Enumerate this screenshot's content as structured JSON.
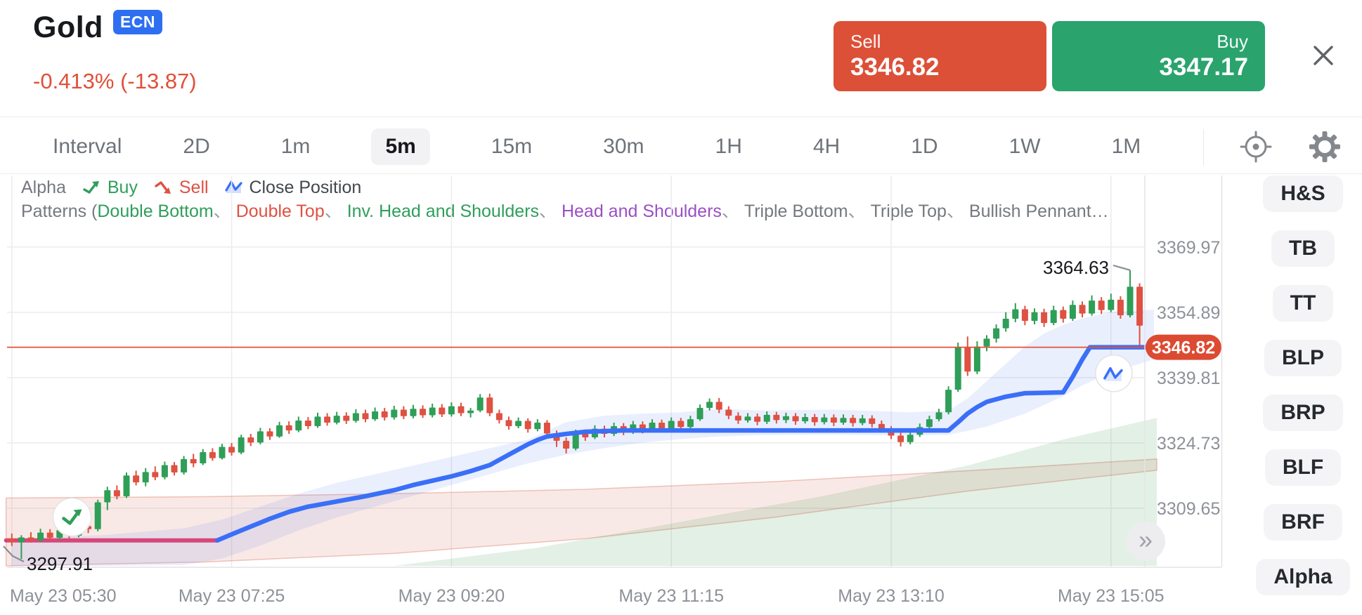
{
  "header": {
    "symbol": "Gold",
    "badge": "ECN",
    "change_text": "-0.413% (-13.87)",
    "sell_label": "Sell",
    "sell_price": "3346.82",
    "buy_label": "Buy",
    "buy_price": "3347.17"
  },
  "intervals": {
    "label": "Interval",
    "options": [
      "2D",
      "1m",
      "5m",
      "15m",
      "30m",
      "1H",
      "4H",
      "1D",
      "1W",
      "1M"
    ],
    "selected": "5m"
  },
  "legend": {
    "alpha_label": "Alpha",
    "buy_label": "Buy",
    "sell_label": "Sell",
    "close_label": "Close Position",
    "patterns_prefix": "Patterns (",
    "separator": "、",
    "patterns": [
      {
        "text": "Double Bottom",
        "color": "#2f9e5b"
      },
      {
        "text": "Double Top",
        "color": "#df5142"
      },
      {
        "text": "Inv. Head and Shoulders",
        "color": "#2f9e5b"
      },
      {
        "text": "Head and Shoulders",
        "color": "#9b4fc4"
      },
      {
        "text": "Triple Bottom",
        "color": "#75797f"
      },
      {
        "text": "Triple Top",
        "color": "#75797f"
      },
      {
        "text": "Bullish Pennant…",
        "color": "#75797f"
      }
    ]
  },
  "sidebar": {
    "buttons": [
      "H&S",
      "TB",
      "TT",
      "BLP",
      "BRP",
      "BLF",
      "BRF",
      "Alpha"
    ]
  },
  "icons": {
    "chevron_more": "»"
  },
  "colors": {
    "up": "#2f9e57",
    "down": "#df5142",
    "blue_line": "#3a6ff7",
    "band_fill": "rgba(61,111,247,0.11)",
    "pink_fill": "rgba(214,98,78,0.14)",
    "pink_edge": "rgba(214,98,78,0.35)",
    "green_fill": "rgba(60,150,80,0.14)",
    "support": "#d6477a",
    "price_line": "#e1523d",
    "pill_bg": "#dc4a32",
    "grid": "#ececee",
    "axis_text": "#8d9198",
    "annotation_text": "#16181c",
    "connector": "#8a8d92"
  },
  "chart_data": {
    "type": "candlestick",
    "symbol": "Gold",
    "interval": "5m",
    "title": "Gold 5m candlestick chart with Alpha close-position line and pattern zones",
    "x_labels": [
      "May 23 05:30",
      "May 23 07:25",
      "May 23 09:20",
      "May 23 11:15",
      "May 23 13:10",
      "May 23 15:05"
    ],
    "x_label_indices": [
      0,
      23,
      46,
      69,
      92,
      115
    ],
    "y_ticks": [
      3369.97,
      3354.89,
      3339.81,
      3324.73,
      3309.65
    ],
    "y_range": [
      3296.0,
      3386.9
    ],
    "current_price": 3346.82,
    "low_annotation": 3297.91,
    "peak_annotation": 3364.63,
    "candles": [
      [
        3302.6,
        3303.8,
        3300.9,
        3301.8
      ],
      [
        3301.8,
        3303.4,
        3297.91,
        3302.9
      ],
      [
        3302.9,
        3304.1,
        3301.7,
        3302.2
      ],
      [
        3302.2,
        3304.9,
        3301.8,
        3304.0
      ],
      [
        3304.0,
        3304.8,
        3302.4,
        3302.8
      ],
      [
        3302.8,
        3305.5,
        3302.3,
        3304.6
      ],
      [
        3304.6,
        3305.3,
        3302.7,
        3303.3
      ],
      [
        3303.3,
        3306.3,
        3302.9,
        3305.5
      ],
      [
        3305.5,
        3306.3,
        3303.9,
        3304.8
      ],
      [
        3304.8,
        3311.6,
        3304.3,
        3311.0
      ],
      [
        3311.0,
        3314.6,
        3309.2,
        3313.8
      ],
      [
        3313.8,
        3314.9,
        3311.7,
        3312.4
      ],
      [
        3312.4,
        3317.9,
        3312.0,
        3317.2
      ],
      [
        3317.2,
        3318.3,
        3314.9,
        3315.6
      ],
      [
        3315.6,
        3318.9,
        3314.7,
        3318.0
      ],
      [
        3318.0,
        3319.3,
        3316.1,
        3316.8
      ],
      [
        3316.8,
        3320.4,
        3316.3,
        3319.6
      ],
      [
        3319.6,
        3320.3,
        3317.2,
        3317.9
      ],
      [
        3317.9,
        3321.7,
        3317.4,
        3321.0
      ],
      [
        3321.0,
        3322.2,
        3319.1,
        3320.0
      ],
      [
        3320.0,
        3323.3,
        3319.6,
        3322.6
      ],
      [
        3322.6,
        3323.5,
        3320.6,
        3321.2
      ],
      [
        3321.2,
        3324.5,
        3320.9,
        3323.8
      ],
      [
        3323.8,
        3324.7,
        3321.8,
        3322.5
      ],
      [
        3322.5,
        3326.6,
        3322.1,
        3326.0
      ],
      [
        3326.0,
        3326.8,
        3324.0,
        3324.8
      ],
      [
        3324.8,
        3328.2,
        3324.4,
        3327.4
      ],
      [
        3327.4,
        3328.1,
        3325.4,
        3326.2
      ],
      [
        3326.2,
        3329.6,
        3325.9,
        3328.8
      ],
      [
        3328.8,
        3329.7,
        3326.8,
        3327.6
      ],
      [
        3327.6,
        3330.8,
        3327.2,
        3329.9
      ],
      [
        3329.9,
        3330.7,
        3327.9,
        3328.6
      ],
      [
        3328.6,
        3331.7,
        3328.2,
        3330.8
      ],
      [
        3330.8,
        3331.6,
        3328.7,
        3329.4
      ],
      [
        3329.4,
        3331.9,
        3329.0,
        3331.0
      ],
      [
        3331.0,
        3331.8,
        3329.1,
        3329.8
      ],
      [
        3329.8,
        3332.5,
        3329.4,
        3331.6
      ],
      [
        3331.6,
        3332.4,
        3329.5,
        3330.2
      ],
      [
        3330.2,
        3332.9,
        3329.8,
        3332.0
      ],
      [
        3332.0,
        3332.8,
        3329.9,
        3330.6
      ],
      [
        3330.6,
        3333.3,
        3330.1,
        3332.4
      ],
      [
        3332.4,
        3333.2,
        3330.2,
        3330.9
      ],
      [
        3330.9,
        3333.5,
        3330.4,
        3332.6
      ],
      [
        3332.6,
        3333.4,
        3330.5,
        3331.1
      ],
      [
        3331.1,
        3333.8,
        3330.6,
        3332.9
      ],
      [
        3332.9,
        3333.7,
        3330.7,
        3331.3
      ],
      [
        3331.3,
        3334.1,
        3330.8,
        3333.2
      ],
      [
        3333.2,
        3334.0,
        3330.9,
        3331.6
      ],
      [
        3331.6,
        3332.8,
        3330.6,
        3332.2
      ],
      [
        3332.2,
        3336.0,
        3331.8,
        3335.2
      ],
      [
        3335.2,
        3336.1,
        3330.9,
        3331.6
      ],
      [
        3331.6,
        3332.4,
        3329.2,
        3330.0
      ],
      [
        3330.0,
        3330.8,
        3327.8,
        3328.6
      ],
      [
        3328.6,
        3330.6,
        3328.1,
        3329.8
      ],
      [
        3329.8,
        3330.4,
        3327.1,
        3327.9
      ],
      [
        3327.9,
        3330.2,
        3327.4,
        3329.4
      ],
      [
        3329.4,
        3330.0,
        3326.1,
        3326.9
      ],
      [
        3326.9,
        3327.6,
        3323.8,
        3325.2
      ],
      [
        3325.2,
        3326.0,
        3322.3,
        3323.4
      ],
      [
        3323.4,
        3327.8,
        3323.0,
        3327.0
      ],
      [
        3327.0,
        3327.8,
        3325.2,
        3326.0
      ],
      [
        3326.0,
        3328.8,
        3325.6,
        3328.0
      ],
      [
        3328.0,
        3328.7,
        3326.0,
        3326.8
      ],
      [
        3326.8,
        3329.4,
        3326.3,
        3328.6
      ],
      [
        3328.6,
        3329.3,
        3326.5,
        3327.3
      ],
      [
        3327.3,
        3329.8,
        3326.8,
        3329.0
      ],
      [
        3329.0,
        3329.7,
        3326.9,
        3327.7
      ],
      [
        3327.7,
        3330.2,
        3327.2,
        3329.4
      ],
      [
        3329.4,
        3330.1,
        3327.2,
        3328.0
      ],
      [
        3328.0,
        3330.6,
        3327.5,
        3329.8
      ],
      [
        3329.8,
        3330.5,
        3327.6,
        3328.4
      ],
      [
        3328.4,
        3331.0,
        3327.9,
        3330.2
      ],
      [
        3330.2,
        3333.6,
        3329.8,
        3332.8
      ],
      [
        3332.8,
        3335.0,
        3332.2,
        3334.2
      ],
      [
        3334.2,
        3335.1,
        3331.6,
        3332.4
      ],
      [
        3332.4,
        3333.2,
        3330.2,
        3331.0
      ],
      [
        3331.0,
        3331.8,
        3329.1,
        3329.9
      ],
      [
        3329.9,
        3331.6,
        3329.4,
        3330.8
      ],
      [
        3330.8,
        3331.5,
        3328.8,
        3329.6
      ],
      [
        3329.6,
        3332.0,
        3329.1,
        3331.2
      ],
      [
        3331.2,
        3331.9,
        3329.2,
        3330.0
      ],
      [
        3330.0,
        3331.7,
        3329.3,
        3330.9
      ],
      [
        3330.9,
        3331.6,
        3328.9,
        3329.7
      ],
      [
        3329.7,
        3331.5,
        3329.2,
        3330.7
      ],
      [
        3330.7,
        3331.4,
        3328.7,
        3329.5
      ],
      [
        3329.5,
        3331.4,
        3329.0,
        3330.6
      ],
      [
        3330.6,
        3331.3,
        3328.6,
        3329.4
      ],
      [
        3329.4,
        3331.3,
        3328.9,
        3330.5
      ],
      [
        3330.5,
        3331.2,
        3328.5,
        3329.3
      ],
      [
        3329.3,
        3331.2,
        3328.8,
        3330.4
      ],
      [
        3330.4,
        3331.1,
        3328.3,
        3329.1
      ],
      [
        3329.1,
        3329.9,
        3327.1,
        3327.9
      ],
      [
        3327.9,
        3328.6,
        3325.6,
        3326.4
      ],
      [
        3326.4,
        3327.1,
        3323.9,
        3324.9
      ],
      [
        3324.9,
        3327.4,
        3324.4,
        3326.6
      ],
      [
        3326.6,
        3329.2,
        3326.1,
        3328.4
      ],
      [
        3328.4,
        3331.0,
        3327.9,
        3330.2
      ],
      [
        3330.2,
        3332.6,
        3329.7,
        3331.8
      ],
      [
        3331.8,
        3337.8,
        3331.3,
        3337.0
      ],
      [
        3337.0,
        3347.9,
        3336.5,
        3346.8
      ],
      [
        3346.8,
        3349.3,
        3340.2,
        3341.2
      ],
      [
        3341.2,
        3348.2,
        3340.6,
        3347.0
      ],
      [
        3347.0,
        3349.6,
        3345.9,
        3348.8
      ],
      [
        3348.8,
        3352.1,
        3347.9,
        3351.2
      ],
      [
        3351.2,
        3354.9,
        3350.4,
        3353.4
      ],
      [
        3353.4,
        3357.0,
        3352.6,
        3355.6
      ],
      [
        3355.6,
        3356.4,
        3351.9,
        3352.9
      ],
      [
        3352.9,
        3355.8,
        3352.1,
        3354.9
      ],
      [
        3354.9,
        3355.7,
        3351.5,
        3352.4
      ],
      [
        3352.4,
        3356.4,
        3351.9,
        3355.4
      ],
      [
        3355.4,
        3356.2,
        3352.5,
        3353.4
      ],
      [
        3353.4,
        3357.6,
        3352.9,
        3356.6
      ],
      [
        3356.6,
        3357.4,
        3353.7,
        3354.6
      ],
      [
        3354.6,
        3358.8,
        3354.1,
        3357.6
      ],
      [
        3357.6,
        3358.4,
        3354.5,
        3355.4
      ],
      [
        3355.4,
        3359.2,
        3354.9,
        3357.8
      ],
      [
        3357.8,
        3358.6,
        3353.4,
        3354.2
      ],
      [
        3354.2,
        3364.63,
        3353.7,
        3360.8
      ],
      [
        3360.8,
        3361.6,
        3346.9,
        3351.8
      ]
    ],
    "close_position_line": [
      [
        21.5,
        3302.2
      ],
      [
        23,
        3303.6
      ],
      [
        25,
        3305.4
      ],
      [
        27,
        3307.2
      ],
      [
        29,
        3308.8
      ],
      [
        31,
        3310.0
      ],
      [
        34,
        3311.2
      ],
      [
        37,
        3312.4
      ],
      [
        40,
        3313.8
      ],
      [
        42,
        3315.0
      ],
      [
        44,
        3316.0
      ],
      [
        46,
        3317.0
      ],
      [
        48,
        3318.2
      ],
      [
        50,
        3319.6
      ],
      [
        51,
        3320.8
      ],
      [
        52,
        3322.0
      ],
      [
        53,
        3323.2
      ],
      [
        54,
        3324.4
      ],
      [
        55,
        3325.4
      ],
      [
        56,
        3326.2
      ],
      [
        58,
        3326.8
      ],
      [
        60,
        3327.3
      ],
      [
        64,
        3327.6
      ],
      [
        98,
        3327.6
      ],
      [
        99,
        3329.5
      ],
      [
        100,
        3331.5
      ],
      [
        101,
        3333.0
      ],
      [
        102,
        3334.2
      ],
      [
        104,
        3335.4
      ],
      [
        106,
        3336.2
      ],
      [
        110,
        3336.4
      ],
      [
        111,
        3340.0
      ],
      [
        112,
        3344.0
      ],
      [
        112.8,
        3346.82
      ],
      [
        119.8,
        3346.82
      ]
    ],
    "support_line": {
      "from": -0.6,
      "to": 21.5,
      "price": 3302.2
    },
    "band": [
      [
        0,
        3302.5,
        3294.8
      ],
      [
        10,
        3303.5,
        3295.2
      ],
      [
        18,
        3305,
        3296.5
      ],
      [
        22,
        3307,
        3298
      ],
      [
        26,
        3310,
        3301
      ],
      [
        30,
        3313,
        3304.5
      ],
      [
        34,
        3315.5,
        3307.5
      ],
      [
        38,
        3317.5,
        3310
      ],
      [
        42,
        3319.5,
        3312.5
      ],
      [
        46,
        3321.5,
        3315
      ],
      [
        50,
        3323.5,
        3317.5
      ],
      [
        54,
        3325.5,
        3320
      ],
      [
        58,
        3329.5,
        3322
      ],
      [
        62,
        3331,
        3323.5
      ],
      [
        66,
        3331.5,
        3324.8
      ],
      [
        70,
        3331.8,
        3325.6
      ],
      [
        74,
        3332.6,
        3326.2
      ],
      [
        78,
        3332.2,
        3326.5
      ],
      [
        86,
        3332.4,
        3326.6
      ],
      [
        94,
        3331.8,
        3326.4
      ],
      [
        98,
        3332.2,
        3326.6
      ],
      [
        100,
        3335,
        3327.5
      ],
      [
        102,
        3339,
        3328.5
      ],
      [
        104,
        3343,
        3330
      ],
      [
        106,
        3347,
        3331.5
      ],
      [
        108,
        3350,
        3333.5
      ],
      [
        110,
        3352,
        3335.5
      ],
      [
        112,
        3353.5,
        3338
      ],
      [
        115,
        3355,
        3341
      ],
      [
        119.5,
        3355.5,
        3344
      ]
    ],
    "pink_zone": [
      [
        -0.6,
        3312.0,
        3296.2
      ],
      [
        20,
        3312.3,
        3297.2
      ],
      [
        40,
        3313.0,
        3299.2
      ],
      [
        60,
        3314.0,
        3302.6
      ],
      [
        80,
        3315.8,
        3307.6
      ],
      [
        100,
        3318.3,
        3313.6
      ],
      [
        119.8,
        3321.0,
        3318.4
      ]
    ],
    "green_zone": [
      [
        40,
        3296.3
      ],
      [
        55,
        3300.5
      ],
      [
        70,
        3306.5
      ],
      [
        85,
        3312.5
      ],
      [
        100,
        3319.5
      ],
      [
        110,
        3325.5
      ],
      [
        119.8,
        3330.5
      ]
    ],
    "markers": {
      "buy_signal": {
        "index": 6.3,
        "price": 3307.6
      },
      "close_signal": {
        "index": 115.3,
        "price": 3340.8
      }
    }
  }
}
